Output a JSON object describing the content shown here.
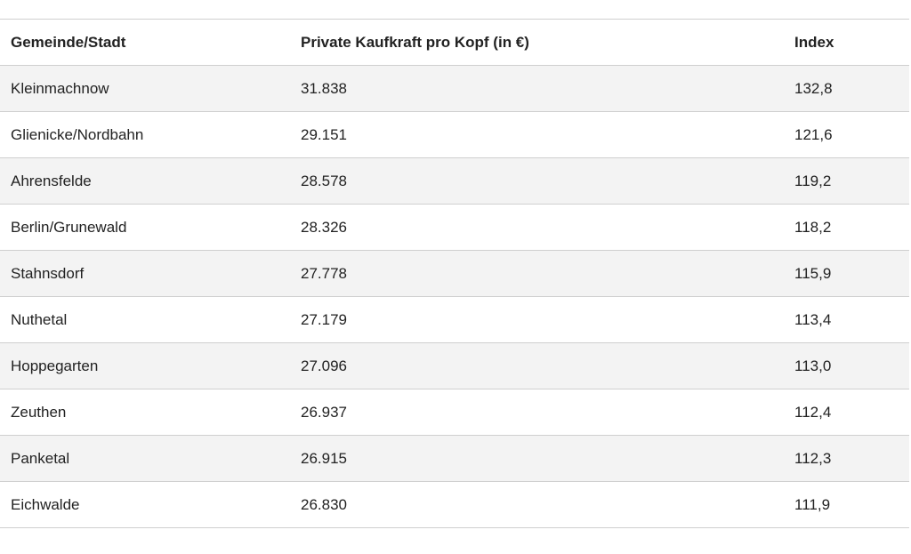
{
  "table": {
    "header": [
      "Gemeinde/Stadt",
      "Private Kaufkraft pro Kopf (in €)",
      "Index"
    ],
    "rows": [
      [
        "Kleinmachnow",
        "31.838",
        "132,8"
      ],
      [
        "Glienicke/Nordbahn",
        "29.151",
        "121,6"
      ],
      [
        "Ahrensfelde",
        "28.578",
        "119,2"
      ],
      [
        "Berlin/Grunewald",
        "28.326",
        "118,2"
      ],
      [
        "Stahnsdorf",
        "27.778",
        "115,9"
      ],
      [
        "Nuthetal",
        "27.179",
        "113,4"
      ],
      [
        "Hoppegarten",
        "27.096",
        "113,0"
      ],
      [
        "Zeuthen",
        "26.937",
        "112,4"
      ],
      [
        "Panketal",
        "26.915",
        "112,3"
      ],
      [
        "Eichwalde",
        "26.830",
        "111,9"
      ]
    ]
  }
}
